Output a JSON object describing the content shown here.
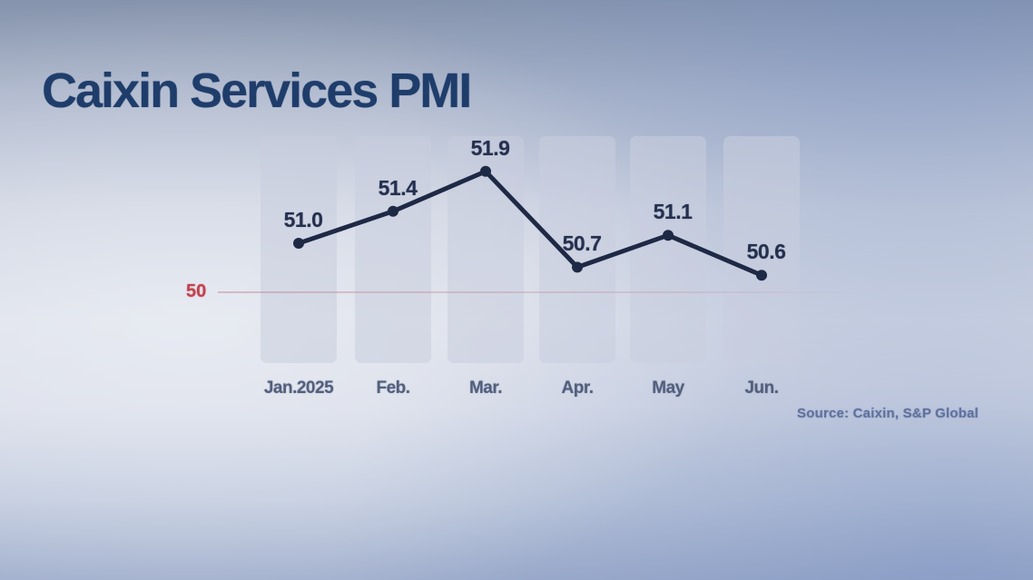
{
  "page": {
    "title": "Caixin Services PMI",
    "source": "Source: Caixin, S&P Global"
  },
  "chart_data": {
    "type": "line",
    "title": "Caixin Services PMI",
    "categories": [
      "Jan.2025",
      "Feb.",
      "Mar.",
      "Apr.",
      "May",
      "Jun."
    ],
    "series": [
      {
        "name": "Caixin Services PMI",
        "values": [
          51.0,
          51.4,
          51.9,
          50.7,
          51.1,
          50.6
        ]
      }
    ],
    "value_labels": [
      "51.0",
      "51.4",
      "51.9",
      "50.7",
      "51.1",
      "50.6"
    ],
    "baseline": {
      "value": 50,
      "label": "50",
      "color": "#c2414e"
    },
    "xlabel": "",
    "ylabel": "",
    "y_axis_visible": false,
    "grid": false,
    "legend": false,
    "colors": {
      "line": "#1e2945",
      "marker": "#1e2945",
      "value_label": "#25304f",
      "month_label": "#525f7d",
      "title": "#1f3d6b",
      "baseline": "#c2414e",
      "band": "#cdd2e0",
      "source": "#60719e"
    }
  }
}
